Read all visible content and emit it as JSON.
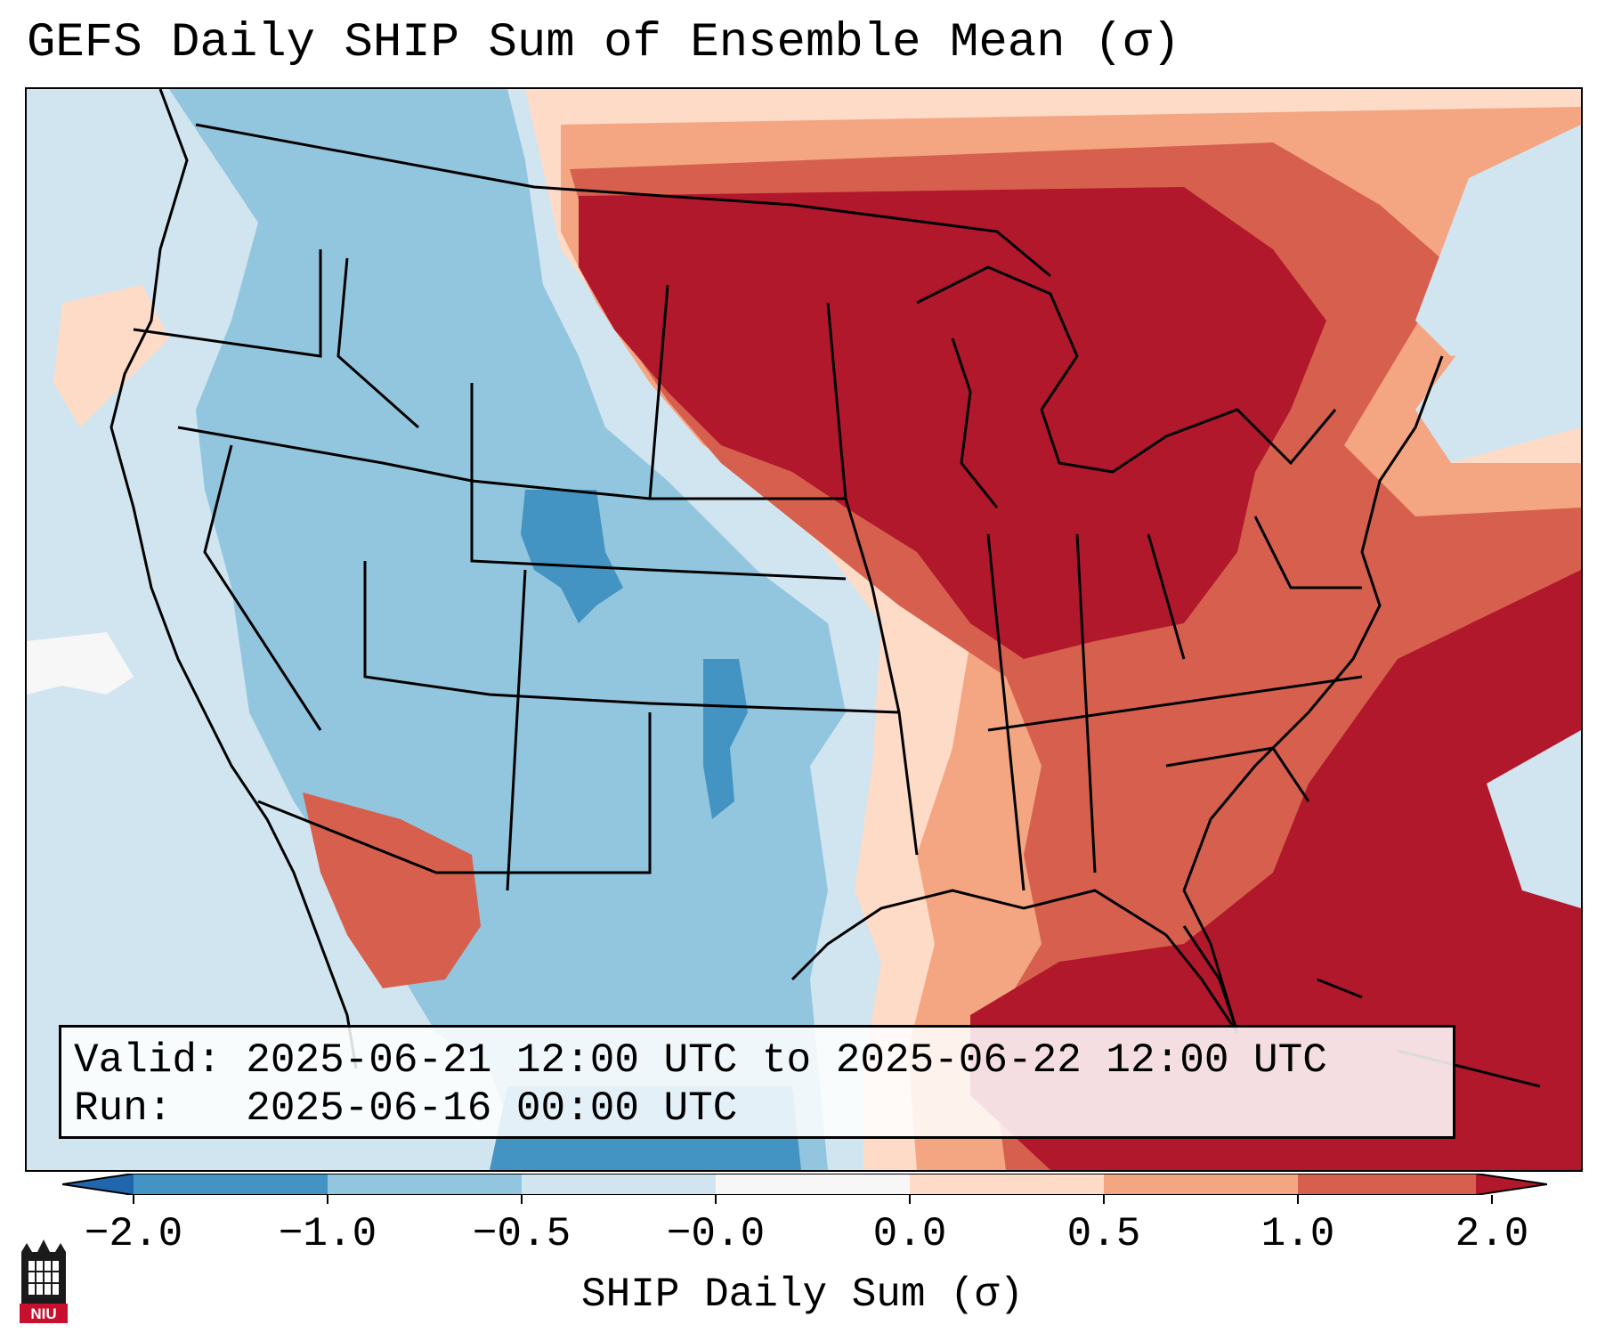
{
  "title": "GEFS Daily SHIP Sum of Ensemble Mean (σ)",
  "info": {
    "valid_label": "Valid:",
    "valid_value": "2025-06-21 12:00 UTC to 2025-06-22 12:00 UTC",
    "run_label": "Run:",
    "run_value": "2025-06-16 00:00 UTC"
  },
  "colorbar": {
    "label": "SHIP Daily Sum (σ)",
    "ticks": [
      "−2.0",
      "−1.0",
      "−0.5",
      "−0.0",
      "0.0",
      "0.5",
      "1.0",
      "2.0"
    ],
    "colors": [
      "#4393c3",
      "#92c5de",
      "#d1e5f0",
      "#f7f7f7",
      "#fddbc7",
      "#f4a582",
      "#d6604d",
      "#b2182b"
    ],
    "extend_low_color": "#2166ac",
    "extend_high_color": "#b2182b"
  },
  "logo_text": "NIU",
  "legend_colors": {
    "background": "#d1e5f0",
    "ocean_far": "#d1e5f0",
    "strong_positive": "#b2182b"
  }
}
